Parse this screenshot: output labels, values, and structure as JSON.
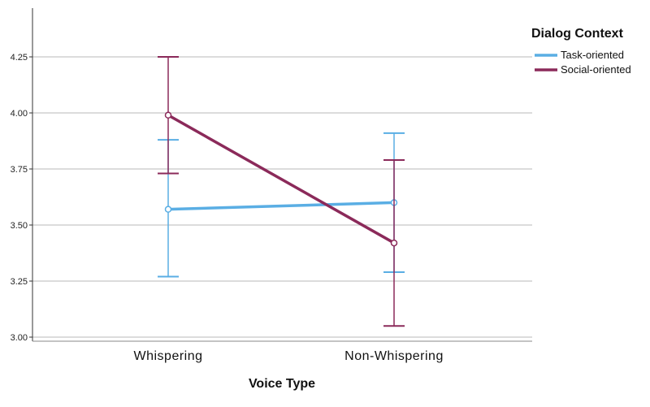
{
  "chart_data": {
    "type": "line",
    "title": "",
    "xlabel": "Voice Type",
    "ylabel": "",
    "categories": [
      "Whispering",
      "Non-Whispering"
    ],
    "ylim": [
      3.0,
      4.35
    ],
    "yticks": [
      "3.00",
      "3.25",
      "3.50",
      "3.75",
      "4.00",
      "4.25"
    ],
    "grid": "horizontal",
    "legend": {
      "title": "Dialog Context",
      "placement": "top-right"
    },
    "series": [
      {
        "name": "Task-oriented",
        "color": "#5aaee4",
        "values": [
          3.57,
          3.6
        ],
        "error_low": [
          3.27,
          3.29
        ],
        "error_high": [
          3.88,
          3.91
        ]
      },
      {
        "name": "Social-oriented",
        "color": "#8b2a5a",
        "values": [
          3.99,
          3.42
        ],
        "error_low": [
          3.73,
          3.05
        ],
        "error_high": [
          4.25,
          3.79
        ]
      }
    ]
  }
}
